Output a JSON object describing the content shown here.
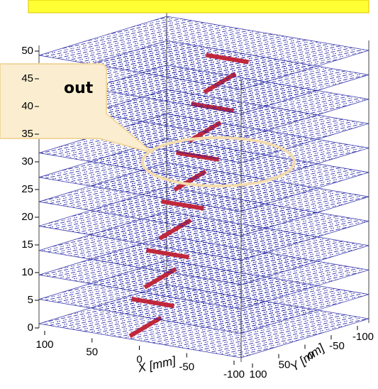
{
  "callout": {
    "text": "out"
  },
  "axes": {
    "z": {
      "ticks": [
        0,
        5,
        10,
        15,
        20,
        25,
        30,
        35,
        40,
        45,
        50
      ]
    },
    "x": {
      "title": "X [mm]",
      "ticks": [
        100,
        50,
        0,
        -50,
        -100
      ]
    },
    "y": {
      "title": "Y [mm]",
      "ticks": [
        100,
        50,
        0,
        -50,
        -100
      ]
    }
  }
}
